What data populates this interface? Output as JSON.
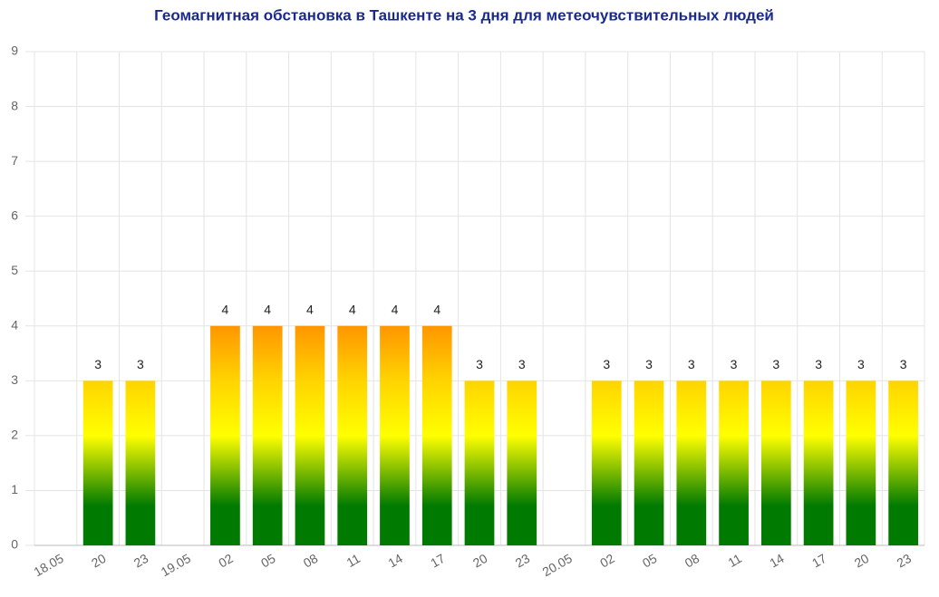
{
  "chart_data": {
    "type": "bar",
    "title": "Геомагнитная обстановка в Ташкенте на 3 дня для метеочувствительных людей",
    "categories": [
      "18.05",
      "20",
      "23",
      "19.05",
      "02",
      "05",
      "08",
      "11",
      "14",
      "17",
      "20",
      "23",
      "20.05",
      "02",
      "05",
      "08",
      "11",
      "14",
      "17",
      "20",
      "23"
    ],
    "values": [
      null,
      3,
      3,
      null,
      4,
      4,
      4,
      4,
      4,
      4,
      3,
      3,
      null,
      3,
      3,
      3,
      3,
      3,
      3,
      3,
      3
    ],
    "ylim": [
      0,
      9
    ],
    "yticks": [
      0,
      1,
      2,
      3,
      4,
      5,
      6,
      7,
      8,
      9
    ],
    "grid": true
  }
}
